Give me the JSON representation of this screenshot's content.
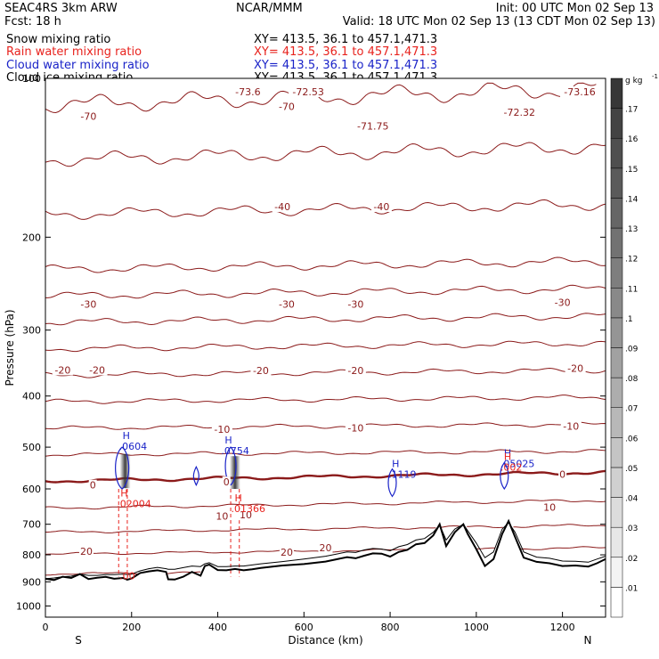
{
  "header": {
    "model": "SEAC4RS  3km ARW",
    "center": "NCAR/MMM",
    "init": "Init: 00 UTC Mon 02 Sep 13",
    "fcst": "Fcst:   18 h",
    "valid": "Valid: 18 UTC Mon 02 Sep 13 (13 CDT Mon 02 Sep 13)"
  },
  "fields": [
    {
      "label": "Snow mixing ratio",
      "xy": "XY= 413.5, 36.1 to 457.1,471.3",
      "color": "#000000"
    },
    {
      "label": "Rain water mixing ratio",
      "xy": "XY= 413.5, 36.1 to 457.1,471.3",
      "color": "#e8231e"
    },
    {
      "label": "Cloud water mixing ratio",
      "xy": "XY= 413.5, 36.1 to 457.1,471.3",
      "color": "#1a23c8"
    },
    {
      "label": "Cloud ice mixing ratio",
      "xy": "XY= 413.5, 36.1 to 457.1,471.3",
      "color": "#000000"
    }
  ],
  "chart_data": {
    "type": "contour",
    "xlabel": "Distance (km)",
    "ylabel": "Pressure (hPa)",
    "xlim": [
      0,
      1300
    ],
    "ylim": [
      1050,
      100
    ],
    "x_ticks": [
      0,
      200,
      400,
      600,
      800,
      1000,
      1200
    ],
    "y_ticks": [
      100,
      200,
      300,
      400,
      500,
      600,
      700,
      800,
      900,
      1000
    ],
    "y_tick_labels": [
      "100",
      "200",
      "300",
      "400",
      "500",
      "600",
      "700",
      "800",
      "900",
      "1000"
    ],
    "end_labels": {
      "left": "S",
      "right": "N"
    },
    "colorbar": {
      "unit": "g kg",
      "unit_exp": "-1",
      "ticks": [
        ".01",
        ".02",
        ".03",
        ".04",
        ".05",
        ".06",
        ".07",
        ".08",
        ".09",
        ".1",
        ".11",
        ".12",
        ".13",
        ".14",
        ".15",
        ".16",
        ".17"
      ]
    },
    "temperature_contours": {
      "color": "#8b1a1a",
      "levels_c": [
        -75,
        -70,
        -65,
        -60,
        -55,
        -50,
        -45,
        -40,
        -35,
        -30,
        -25,
        -20,
        -15,
        -10,
        -5,
        0,
        5,
        10,
        15,
        20,
        25,
        30
      ],
      "labels": [
        {
          "text": "-70",
          "x": 100,
          "p": 118
        },
        {
          "text": "-70",
          "x": 560,
          "p": 113
        },
        {
          "text": "-73.6",
          "x": 470,
          "p": 106
        },
        {
          "text": "-72.53",
          "x": 610,
          "p": 106
        },
        {
          "text": "-71.75",
          "x": 760,
          "p": 123
        },
        {
          "text": "-72.32",
          "x": 1100,
          "p": 116
        },
        {
          "text": "-73.16",
          "x": 1240,
          "p": 106
        },
        {
          "text": "-40",
          "x": 550,
          "p": 175
        },
        {
          "text": "-40",
          "x": 780,
          "p": 175
        },
        {
          "text": "-30",
          "x": 100,
          "p": 268
        },
        {
          "text": "-30",
          "x": 560,
          "p": 268
        },
        {
          "text": "-30",
          "x": 720,
          "p": 268
        },
        {
          "text": "-30",
          "x": 1200,
          "p": 266
        },
        {
          "text": "-20",
          "x": 40,
          "p": 357
        },
        {
          "text": "-20",
          "x": 120,
          "p": 357
        },
        {
          "text": "-20",
          "x": 500,
          "p": 358
        },
        {
          "text": "-20",
          "x": 720,
          "p": 358
        },
        {
          "text": "-20",
          "x": 1230,
          "p": 354
        },
        {
          "text": "-10",
          "x": 410,
          "p": 462
        },
        {
          "text": "-10",
          "x": 720,
          "p": 460
        },
        {
          "text": "-10",
          "x": 1220,
          "p": 456
        },
        {
          "text": "0",
          "x": 110,
          "p": 590
        },
        {
          "text": "0",
          "x": 420,
          "p": 582
        },
        {
          "text": "0",
          "x": 1200,
          "p": 563
        },
        {
          "text": "10",
          "x": 1170,
          "p": 650
        },
        {
          "text": "10",
          "x": 410,
          "p": 676
        },
        {
          "text": "10",
          "x": 465,
          "p": 672
        },
        {
          "text": "20",
          "x": 95,
          "p": 788
        },
        {
          "text": "20",
          "x": 560,
          "p": 791
        },
        {
          "text": "20",
          "x": 650,
          "p": 776
        }
      ]
    },
    "terrain": {
      "x": [
        0,
        20,
        40,
        60,
        80,
        100,
        120,
        140,
        160,
        180,
        190,
        200,
        220,
        240,
        260,
        280,
        285,
        300,
        320,
        340,
        360,
        370,
        380,
        400,
        420,
        440,
        460,
        480,
        500,
        550,
        600,
        650,
        700,
        720,
        740,
        760,
        780,
        800,
        820,
        840,
        860,
        880,
        900,
        915,
        930,
        950,
        970,
        980,
        1000,
        1020,
        1040,
        1060,
        1075,
        1090,
        1110,
        1140,
        1170,
        1200,
        1230,
        1260,
        1280,
        1300,
        1310
      ],
      "p": [
        888,
        893,
        880,
        885,
        870,
        889,
        884,
        881,
        888,
        885,
        892,
        887,
        866,
        860,
        856,
        862,
        890,
        891,
        880,
        862,
        876,
        840,
        835,
        855,
        856,
        851,
        856,
        852,
        847,
        838,
        833,
        824,
        808,
        812,
        803,
        795,
        796,
        806,
        790,
        783,
        764,
        760,
        735,
        700,
        770,
        725,
        700,
        730,
        780,
        840,
        815,
        730,
        690,
        740,
        810,
        825,
        830,
        840,
        838,
        842,
        830,
        815,
        808
      ],
      "secondary_p": [
        888,
        885,
        880,
        878,
        870,
        875,
        875,
        872,
        872,
        870,
        872,
        870,
        858,
        850,
        845,
        850,
        852,
        852,
        846,
        840,
        842,
        832,
        828,
        842,
        842,
        840,
        840,
        836,
        832,
        824,
        815,
        805,
        790,
        792,
        783,
        778,
        780,
        786,
        772,
        765,
        750,
        745,
        725,
        702,
        750,
        715,
        700,
        720,
        760,
        810,
        790,
        715,
        695,
        725,
        790,
        808,
        812,
        822,
        823,
        826,
        815,
        805,
        800
      ]
    },
    "snow_shading": [
      {
        "x": 185,
        "p_top": 515,
        "p_bottom": 598,
        "max": 0.12
      },
      {
        "x": 440,
        "p_top": 520,
        "p_bottom": 600,
        "max": 0.13
      }
    ],
    "cloud_water": {
      "color": "#1a23c8",
      "maxima": [
        {
          "label": "H",
          "value": ".0604",
          "x": 175,
          "p": 498
        },
        {
          "label": "H",
          "value": ".0754",
          "x": 412,
          "p": 508
        },
        {
          "label": "H",
          "value": ".1119",
          "x": 800,
          "p": 563
        },
        {
          "label": "H",
          "value": ".05025",
          "x": 1060,
          "p": 537
        }
      ]
    },
    "rain_water": {
      "color": "#e8231e",
      "maxima": [
        {
          "label": "H",
          "value": ".02004",
          "x": 170,
          "p": 640
        },
        {
          "label": "H",
          "value": ".01366",
          "x": 435,
          "p": 653
        },
        {
          "label": "H",
          "value": ".002",
          "x": 1060,
          "p": 546
        }
      ],
      "lone_label": {
        "text": ".00",
        "x": 190,
        "p": 877
      }
    }
  }
}
